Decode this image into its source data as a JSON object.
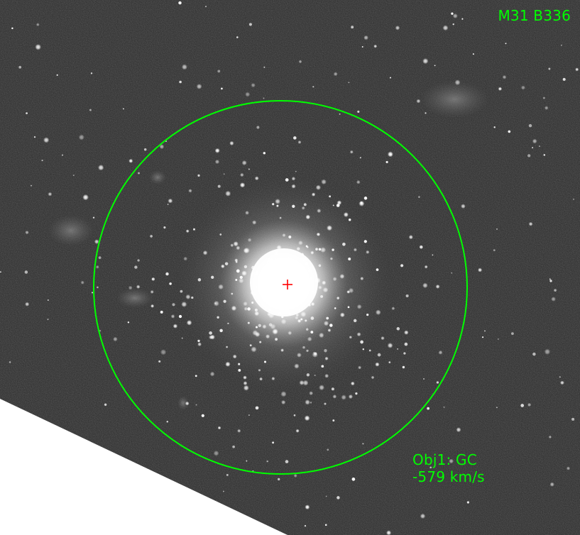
{
  "image": {
    "target_name": "M31 B336",
    "object": {
      "id_label": "Obj1: GC",
      "velocity_label": "-579 km/s"
    },
    "colors": {
      "overlay_green": "#00ff00",
      "crosshair_red": "#ff0000",
      "sky_background": "#2e2e2e",
      "blank_region": "#ffffff"
    },
    "icons": {
      "aperture": "aperture-circle",
      "center": "crosshair-marker"
    }
  }
}
